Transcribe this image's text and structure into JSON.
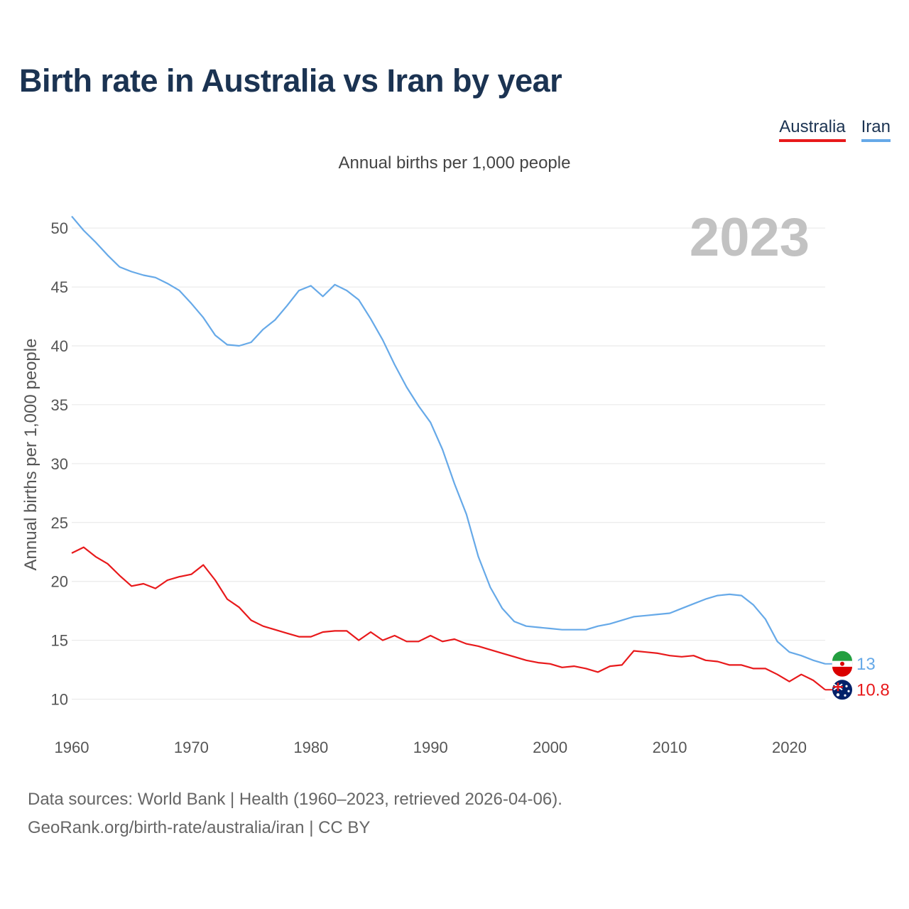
{
  "chart_data": {
    "type": "line",
    "title": "Birth rate in Australia vs Iran by year",
    "subtitle": "Annual births per 1,000 people",
    "ylabel": "Annual births per 1,000 people",
    "xlabel": "",
    "xlim": [
      1960,
      2023
    ],
    "ylim": [
      7.5,
      52
    ],
    "yticks": [
      10,
      15,
      20,
      25,
      30,
      35,
      40,
      45,
      50
    ],
    "xticks": [
      1960,
      1970,
      1980,
      1990,
      2000,
      2010,
      2020
    ],
    "year_label": "2023",
    "legend_position": "top-right",
    "grid": true,
    "x": [
      1960,
      1961,
      1962,
      1963,
      1964,
      1965,
      1966,
      1967,
      1968,
      1969,
      1970,
      1971,
      1972,
      1973,
      1974,
      1975,
      1976,
      1977,
      1978,
      1979,
      1980,
      1981,
      1982,
      1983,
      1984,
      1985,
      1986,
      1987,
      1988,
      1989,
      1990,
      1991,
      1992,
      1993,
      1994,
      1995,
      1996,
      1997,
      1998,
      1999,
      2000,
      2001,
      2002,
      2003,
      2004,
      2005,
      2006,
      2007,
      2008,
      2009,
      2010,
      2011,
      2012,
      2013,
      2014,
      2015,
      2016,
      2017,
      2018,
      2019,
      2020,
      2021,
      2022,
      2023
    ],
    "series": [
      {
        "name": "Australia",
        "color": "#e8191b",
        "end_label": "10.8",
        "values": [
          22.4,
          22.9,
          22.1,
          21.5,
          20.5,
          19.6,
          19.8,
          19.4,
          20.1,
          20.4,
          20.6,
          21.4,
          20.1,
          18.5,
          17.8,
          16.7,
          16.2,
          15.9,
          15.6,
          15.3,
          15.3,
          15.7,
          15.8,
          15.8,
          15.0,
          15.7,
          15.0,
          15.4,
          14.9,
          14.9,
          15.4,
          14.9,
          15.1,
          14.7,
          14.5,
          14.2,
          13.9,
          13.6,
          13.3,
          13.1,
          13.0,
          12.7,
          12.8,
          12.6,
          12.3,
          12.8,
          12.9,
          14.1,
          14.0,
          13.9,
          13.7,
          13.6,
          13.7,
          13.3,
          13.2,
          12.9,
          12.9,
          12.6,
          12.6,
          12.1,
          11.5,
          12.1,
          11.6,
          10.8
        ]
      },
      {
        "name": "Iran",
        "color": "#66a9e8",
        "end_label": "13",
        "values": [
          51.0,
          49.8,
          48.8,
          47.7,
          46.7,
          46.3,
          46.0,
          45.8,
          45.3,
          44.7,
          43.6,
          42.4,
          40.9,
          40.1,
          40.0,
          40.3,
          41.4,
          42.2,
          43.4,
          44.7,
          45.1,
          44.2,
          45.2,
          44.7,
          43.9,
          42.3,
          40.5,
          38.4,
          36.5,
          34.9,
          33.5,
          31.2,
          28.3,
          25.7,
          22.1,
          19.5,
          17.7,
          16.6,
          16.2,
          16.1,
          16.0,
          15.9,
          15.9,
          15.9,
          16.2,
          16.4,
          16.7,
          17.0,
          17.1,
          17.2,
          17.3,
          17.7,
          18.1,
          18.5,
          18.8,
          18.9,
          18.8,
          18.0,
          16.8,
          14.9,
          14.0,
          13.7,
          13.3,
          13.0
        ]
      }
    ]
  },
  "legend": {
    "australia": "Australia",
    "iran": "Iran"
  },
  "source": {
    "line1": "Data sources: World Bank | Health (1960–2023, retrieved 2026-04-06).",
    "line2": "GeoRank.org/birth-rate/australia/iran | CC BY"
  }
}
